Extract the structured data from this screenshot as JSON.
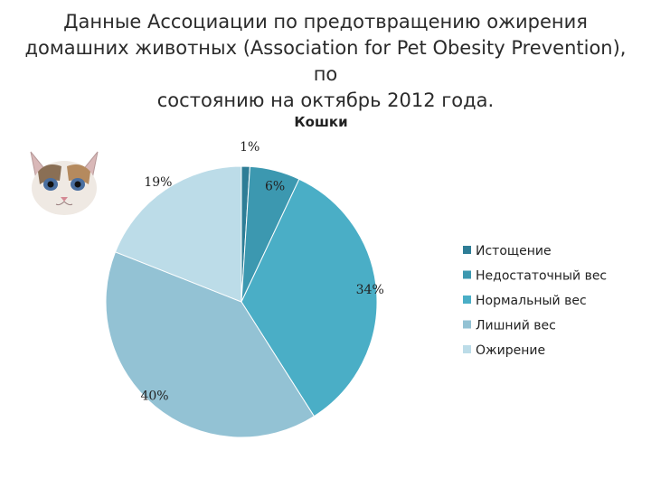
{
  "slide": {
    "title_lines": [
      "Данные Ассоциации по предотвращению ожирения",
      "домашних животных (Association for Pet Obesity Prevention), по",
      "состоянию на октябрь 2012 года."
    ]
  },
  "chart_data": {
    "type": "pie",
    "title": "Кошки",
    "categories": [
      "Истощение",
      "Недостаточный вес",
      "Нормальный вес",
      "Лишний вес",
      "Ожирение"
    ],
    "values": [
      1,
      6,
      34,
      40,
      19
    ],
    "labels": [
      "1%",
      "6%",
      "34%",
      "40%",
      "19%"
    ],
    "colors": [
      "#2e7d96",
      "#3c98b0",
      "#4aaec6",
      "#93c2d4",
      "#bcdce8"
    ],
    "legend_position": "right"
  },
  "image": {
    "icon": "cat-face-icon"
  }
}
